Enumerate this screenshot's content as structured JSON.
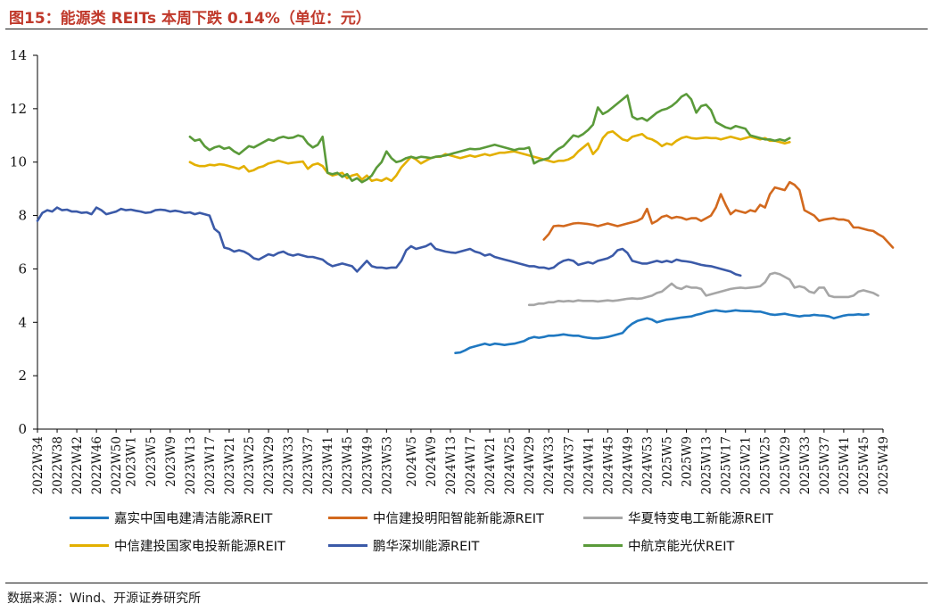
{
  "header": {
    "title": "图15：能源类 REITs 本周下跌 0.14%（单位：元）"
  },
  "footer": {
    "source": "数据来源：Wind、开源证券研究所"
  },
  "colors": {
    "blue": "#1f78c1",
    "orange": "#d2691e",
    "gray": "#a6a6a6",
    "gold": "#e3b000",
    "navy": "#3b5aa8",
    "green": "#5a9a3a",
    "axis": "#000000"
  },
  "chart_data": {
    "type": "line",
    "title": "",
    "xlabel": "",
    "ylabel": "",
    "ylim": [
      0,
      14
    ],
    "yticks": [
      0,
      2,
      4,
      6,
      8,
      10,
      12,
      14
    ],
    "grid": false,
    "legend_position": "bottom",
    "xticks": [
      "2022W34",
      "2022W38",
      "2022W42",
      "2022W46",
      "2022W50",
      "2023W1",
      "2023W5",
      "2023W9",
      "2023W13",
      "2023W17",
      "2023W21",
      "2023W25",
      "2023W29",
      "2023W33",
      "2023W37",
      "2023W41",
      "2023W45",
      "2023W49",
      "2023W53",
      "2024W5",
      "2024W9",
      "2024W13",
      "2024W17",
      "2024W21",
      "2024W25",
      "2024W29",
      "2024W33",
      "2024W37",
      "2024W41",
      "2024W45",
      "2024W49",
      "2024W53",
      "2025W5",
      "2025W9",
      "2025W13",
      "2025W17",
      "2025W21",
      "2025W25",
      "2025W29",
      "2025W33",
      "2025W37",
      "2025W41",
      "2025W45",
      "2025W49"
    ],
    "x_start_week": "2022W34",
    "series": [
      {
        "name": "嘉实中国电建清洁能源REIT",
        "color": "#1f78c1",
        "start_week": "2024W14",
        "values": [
          2.85,
          2.87,
          2.95,
          3.05,
          3.1,
          3.15,
          3.2,
          3.15,
          3.2,
          3.18,
          3.15,
          3.18,
          3.2,
          3.25,
          3.3,
          3.4,
          3.45,
          3.42,
          3.45,
          3.5,
          3.5,
          3.52,
          3.55,
          3.52,
          3.5,
          3.5,
          3.45,
          3.42,
          3.4,
          3.4,
          3.42,
          3.45,
          3.5,
          3.55,
          3.6,
          3.8,
          3.95,
          4.05,
          4.1,
          4.15,
          4.1,
          4.0,
          4.05,
          4.1,
          4.12,
          4.15,
          4.18,
          4.2,
          4.22,
          4.28,
          4.32,
          4.38,
          4.42,
          4.45,
          4.42,
          4.4,
          4.42,
          4.45,
          4.43,
          4.42,
          4.42,
          4.4,
          4.4,
          4.35,
          4.3,
          4.28,
          4.3,
          4.32,
          4.28,
          4.25,
          4.22,
          4.25,
          4.25,
          4.28,
          4.26,
          4.25,
          4.22,
          4.15,
          4.2,
          4.25,
          4.28,
          4.28,
          4.3,
          4.28,
          4.3
        ]
      },
      {
        "name": "中信建投明阳智能新能源REIT",
        "color": "#d2691e",
        "start_week": "2024W32",
        "values": [
          7.1,
          7.3,
          7.6,
          7.62,
          7.6,
          7.65,
          7.7,
          7.72,
          7.7,
          7.68,
          7.65,
          7.6,
          7.65,
          7.7,
          7.65,
          7.6,
          7.65,
          7.7,
          7.75,
          7.8,
          7.9,
          8.25,
          7.7,
          7.8,
          7.95,
          8.0,
          7.9,
          7.95,
          7.92,
          7.85,
          7.9,
          7.9,
          7.8,
          7.9,
          8.0,
          8.3,
          8.8,
          8.4,
          8.05,
          8.2,
          8.15,
          8.1,
          8.2,
          8.15,
          8.4,
          8.3,
          8.8,
          9.05,
          9.0,
          8.95,
          9.25,
          9.15,
          8.95,
          8.2,
          8.1,
          8.0,
          7.8,
          7.85,
          7.88,
          7.9,
          7.85,
          7.85,
          7.8,
          7.55,
          7.55,
          7.5,
          7.45,
          7.42,
          7.3,
          7.2,
          7.0,
          6.8
        ]
      },
      {
        "name": "华夏特变电工新能源REIT",
        "color": "#a6a6a6",
        "start_week": "2024W29",
        "values": [
          4.65,
          4.65,
          4.7,
          4.7,
          4.75,
          4.75,
          4.8,
          4.78,
          4.8,
          4.78,
          4.82,
          4.8,
          4.8,
          4.8,
          4.78,
          4.8,
          4.82,
          4.8,
          4.82,
          4.85,
          4.88,
          4.9,
          4.88,
          4.9,
          4.95,
          5.0,
          5.1,
          5.15,
          5.3,
          5.45,
          5.3,
          5.25,
          5.35,
          5.3,
          5.3,
          5.25,
          5.0,
          5.05,
          5.1,
          5.15,
          5.2,
          5.25,
          5.28,
          5.3,
          5.28,
          5.3,
          5.32,
          5.35,
          5.5,
          5.8,
          5.85,
          5.8,
          5.7,
          5.6,
          5.3,
          5.35,
          5.3,
          5.15,
          5.1,
          5.3,
          5.3,
          5.0,
          4.95,
          4.95,
          4.95,
          4.95,
          5.0,
          5.15,
          5.2,
          5.15,
          5.1,
          5.0
        ]
      },
      {
        "name": "中信建投国家电投新能源REIT",
        "color": "#e3b000",
        "start_week": "2023W13",
        "values": [
          10.0,
          9.9,
          9.85,
          9.85,
          9.9,
          9.88,
          9.92,
          9.9,
          9.85,
          9.8,
          9.75,
          9.85,
          9.65,
          9.7,
          9.8,
          9.85,
          9.95,
          10.0,
          10.05,
          10.0,
          9.95,
          9.98,
          10.0,
          10.02,
          9.75,
          9.9,
          9.95,
          9.85,
          9.6,
          9.5,
          9.55,
          9.6,
          9.4,
          9.5,
          9.55,
          9.35,
          9.5,
          9.3,
          9.35,
          9.3,
          9.4,
          9.3,
          9.5,
          9.8,
          10.0,
          10.2,
          10.1,
          9.95,
          10.05,
          10.15,
          10.2,
          10.2,
          10.3,
          10.25,
          10.2,
          10.15,
          10.2,
          10.25,
          10.2,
          10.25,
          10.3,
          10.25,
          10.3,
          10.35,
          10.35,
          10.38,
          10.4,
          10.35,
          10.3,
          10.25,
          10.2,
          10.15,
          10.1,
          10.05,
          10.0,
          10.05,
          10.05,
          10.1,
          10.2,
          10.4,
          10.55,
          10.7,
          10.3,
          10.5,
          10.9,
          11.1,
          11.15,
          11.0,
          10.85,
          10.8,
          10.95,
          11.0,
          11.05,
          10.9,
          10.85,
          10.75,
          10.6,
          10.7,
          10.65,
          10.8,
          10.9,
          10.95,
          10.9,
          10.88,
          10.9,
          10.92,
          10.9,
          10.9,
          10.85,
          10.9,
          10.95,
          10.9,
          10.85,
          10.9,
          10.95,
          10.9,
          10.85,
          10.9,
          10.8,
          10.8,
          10.75,
          10.7,
          10.75
        ]
      },
      {
        "name": "鹏华深圳能源REIT",
        "color": "#3b5aa8",
        "start_week": "2022W34",
        "values": [
          7.8,
          8.1,
          8.2,
          8.15,
          8.3,
          8.2,
          8.22,
          8.15,
          8.15,
          8.1,
          8.12,
          8.05,
          8.3,
          8.2,
          8.05,
          8.1,
          8.15,
          8.25,
          8.2,
          8.22,
          8.18,
          8.15,
          8.1,
          8.12,
          8.2,
          8.22,
          8.2,
          8.15,
          8.18,
          8.15,
          8.1,
          8.12,
          8.05,
          8.1,
          8.05,
          8.0,
          7.5,
          7.35,
          6.8,
          6.75,
          6.65,
          6.7,
          6.65,
          6.55,
          6.4,
          6.35,
          6.45,
          6.55,
          6.5,
          6.6,
          6.65,
          6.55,
          6.5,
          6.55,
          6.5,
          6.45,
          6.45,
          6.4,
          6.35,
          6.2,
          6.1,
          6.15,
          6.2,
          6.15,
          6.1,
          5.9,
          6.1,
          6.3,
          6.1,
          6.05,
          6.05,
          6.02,
          6.05,
          6.05,
          6.3,
          6.7,
          6.85,
          6.75,
          6.8,
          6.85,
          6.95,
          6.75,
          6.7,
          6.65,
          6.62,
          6.6,
          6.65,
          6.7,
          6.75,
          6.65,
          6.6,
          6.5,
          6.55,
          6.45,
          6.4,
          6.35,
          6.3,
          6.25,
          6.2,
          6.15,
          6.1,
          6.1,
          6.05,
          6.05,
          6.0,
          6.05,
          6.2,
          6.3,
          6.35,
          6.3,
          6.15,
          6.2,
          6.25,
          6.2,
          6.3,
          6.35,
          6.4,
          6.5,
          6.7,
          6.75,
          6.6,
          6.3,
          6.25,
          6.2,
          6.2,
          6.25,
          6.3,
          6.25,
          6.3,
          6.25,
          6.35,
          6.3,
          6.28,
          6.25,
          6.2,
          6.15,
          6.12,
          6.1,
          6.05,
          6.0,
          5.95,
          5.9,
          5.8,
          5.75
        ]
      },
      {
        "name": "中航京能光伏REIT",
        "color": "#5a9a3a",
        "start_week": "2023W13",
        "values": [
          10.95,
          10.8,
          10.85,
          10.6,
          10.45,
          10.55,
          10.6,
          10.5,
          10.55,
          10.4,
          10.3,
          10.45,
          10.6,
          10.55,
          10.65,
          10.75,
          10.85,
          10.8,
          10.9,
          10.95,
          10.9,
          10.92,
          11.0,
          10.95,
          10.7,
          10.55,
          10.65,
          10.95,
          9.6,
          9.55,
          9.6,
          9.45,
          9.55,
          9.3,
          9.4,
          9.25,
          9.35,
          9.5,
          9.8,
          10.0,
          10.4,
          10.15,
          10.0,
          10.05,
          10.15,
          10.2,
          10.15,
          10.2,
          10.18,
          10.15,
          10.2,
          10.22,
          10.25,
          10.3,
          10.35,
          10.4,
          10.45,
          10.5,
          10.48,
          10.5,
          10.55,
          10.6,
          10.65,
          10.6,
          10.55,
          10.5,
          10.45,
          10.5,
          10.5,
          10.55,
          9.95,
          10.05,
          10.1,
          10.15,
          10.35,
          10.5,
          10.6,
          10.8,
          11.0,
          10.95,
          11.05,
          11.2,
          11.4,
          12.05,
          11.8,
          11.9,
          12.05,
          12.2,
          12.35,
          12.5,
          11.7,
          11.6,
          11.65,
          11.55,
          11.7,
          11.85,
          11.95,
          12.0,
          12.1,
          12.25,
          12.45,
          12.55,
          12.35,
          11.85,
          12.1,
          12.15,
          11.95,
          11.5,
          11.4,
          11.3,
          11.25,
          11.35,
          11.3,
          11.25,
          11.0,
          10.95,
          10.9,
          10.85,
          10.85,
          10.8,
          10.85,
          10.8,
          10.9
        ]
      }
    ]
  }
}
